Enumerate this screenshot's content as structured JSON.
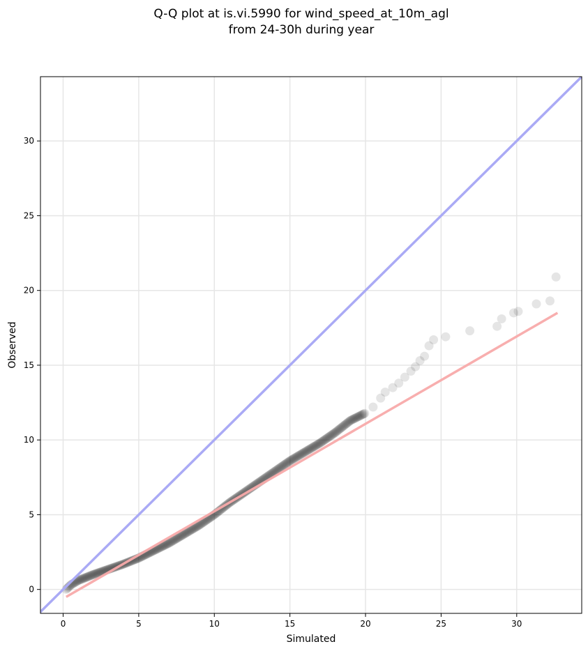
{
  "chart_data": {
    "type": "scatter",
    "title_line1": "Q-Q plot at is.vi.5990 for wind_speed_at_10m_agl",
    "title_line2": "from 24-30h during year",
    "xlabel": "Simulated",
    "ylabel": "Observed",
    "xlim": [
      -1.5,
      34.3
    ],
    "ylim": [
      -1.6,
      34.3
    ],
    "xticks": [
      0,
      5,
      10,
      15,
      20,
      25,
      30
    ],
    "yticks": [
      0,
      5,
      10,
      15,
      20,
      25,
      30
    ],
    "grid": true,
    "colors": {
      "identity_line": "#aaaaf5",
      "fit_line": "#f8aaaa",
      "points": "#000000"
    },
    "identity_line": {
      "x": [
        -1.5,
        34.3
      ],
      "y": [
        -1.5,
        34.3
      ]
    },
    "fit_line": {
      "x": [
        0.2,
        32.7
      ],
      "y": [
        -0.5,
        18.5
      ]
    },
    "qq_curve": {
      "x": [
        0.2,
        0.5,
        1,
        2,
        3,
        4,
        5,
        6,
        7,
        8,
        9,
        10,
        11,
        12,
        13,
        14,
        15,
        16,
        17,
        18,
        19,
        20
      ],
      "y": [
        0.0,
        0.3,
        0.6,
        1.0,
        1.35,
        1.7,
        2.1,
        2.6,
        3.1,
        3.7,
        4.3,
        5.0,
        5.8,
        6.5,
        7.2,
        7.9,
        8.6,
        9.2,
        9.8,
        10.5,
        11.3,
        11.8
      ]
    },
    "tail_points": {
      "x": [
        20.5,
        21,
        21.3,
        21.8,
        22.2,
        22.6,
        23.0,
        23.3,
        23.6,
        23.9,
        24.2,
        24.5,
        25.3,
        26.9,
        28.7,
        29.0,
        29.8,
        30.1,
        31.3,
        32.2,
        32.6
      ],
      "y": [
        12.2,
        12.8,
        13.2,
        13.5,
        13.8,
        14.2,
        14.6,
        14.9,
        15.3,
        15.6,
        16.3,
        16.7,
        16.9,
        17.3,
        17.6,
        18.1,
        18.5,
        18.6,
        19.1,
        19.3,
        20.9
      ]
    }
  }
}
